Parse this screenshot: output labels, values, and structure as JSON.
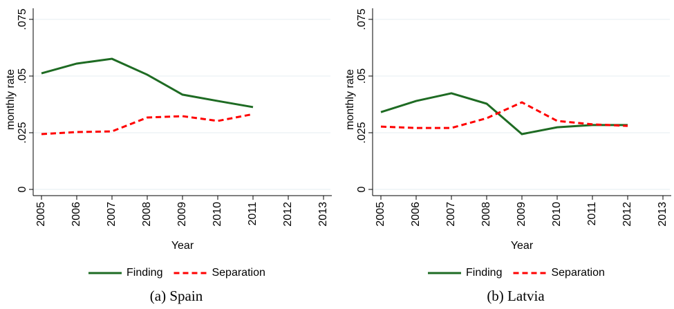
{
  "chart_data": [
    {
      "type": "line",
      "caption": "(a) Spain",
      "xlabel": "Year",
      "ylabel": "monthly rate",
      "xlim": [
        2005,
        2013
      ],
      "xticks": [
        2005,
        2006,
        2007,
        2008,
        2009,
        2010,
        2011,
        2012,
        2013
      ],
      "ylim": [
        0,
        0.075
      ],
      "yticks": [
        0,
        {
          "value": 0.025,
          "label": ".025"
        },
        {
          "value": 0.05,
          "label": ".05"
        },
        {
          "value": 0.075,
          "label": ".075"
        }
      ],
      "grid": true,
      "legend": "bottom",
      "series": [
        {
          "name": "Finding",
          "color": "#1e6b23",
          "dash": "solid",
          "x": [
            2005,
            2006,
            2007,
            2008,
            2009,
            2010,
            2011
          ],
          "values": [
            0.0512,
            0.0555,
            0.0576,
            0.0506,
            0.0418,
            0.039,
            0.0363
          ]
        },
        {
          "name": "Separation",
          "color": "#ff0000",
          "dash": "dashed",
          "x": [
            2005,
            2006,
            2007,
            2008,
            2009,
            2010,
            2011
          ],
          "values": [
            0.0244,
            0.0253,
            0.0256,
            0.0317,
            0.0323,
            0.0302,
            0.0332
          ]
        }
      ]
    },
    {
      "type": "line",
      "caption": "(b) Latvia",
      "xlabel": "Year",
      "ylabel": "monthly rate",
      "xlim": [
        2005,
        2013
      ],
      "xticks": [
        2005,
        2006,
        2007,
        2008,
        2009,
        2010,
        2011,
        2012,
        2013
      ],
      "ylim": [
        0,
        0.075
      ],
      "yticks": [
        0,
        {
          "value": 0.025,
          "label": ".025"
        },
        {
          "value": 0.05,
          "label": ".05"
        },
        {
          "value": 0.075,
          "label": ".075"
        }
      ],
      "grid": true,
      "legend": "bottom",
      "series": [
        {
          "name": "Finding",
          "color": "#1e6b23",
          "dash": "solid",
          "x": [
            2005,
            2006,
            2007,
            2008,
            2009,
            2010,
            2011,
            2012
          ],
          "values": [
            0.0341,
            0.039,
            0.0424,
            0.0378,
            0.0244,
            0.0274,
            0.0284,
            0.0284
          ]
        },
        {
          "name": "Separation",
          "color": "#ff0000",
          "dash": "dashed",
          "x": [
            2005,
            2006,
            2007,
            2008,
            2009,
            2010,
            2011,
            2012
          ],
          "values": [
            0.0277,
            0.0271,
            0.0271,
            0.0314,
            0.0384,
            0.0302,
            0.0287,
            0.028
          ]
        }
      ]
    }
  ]
}
